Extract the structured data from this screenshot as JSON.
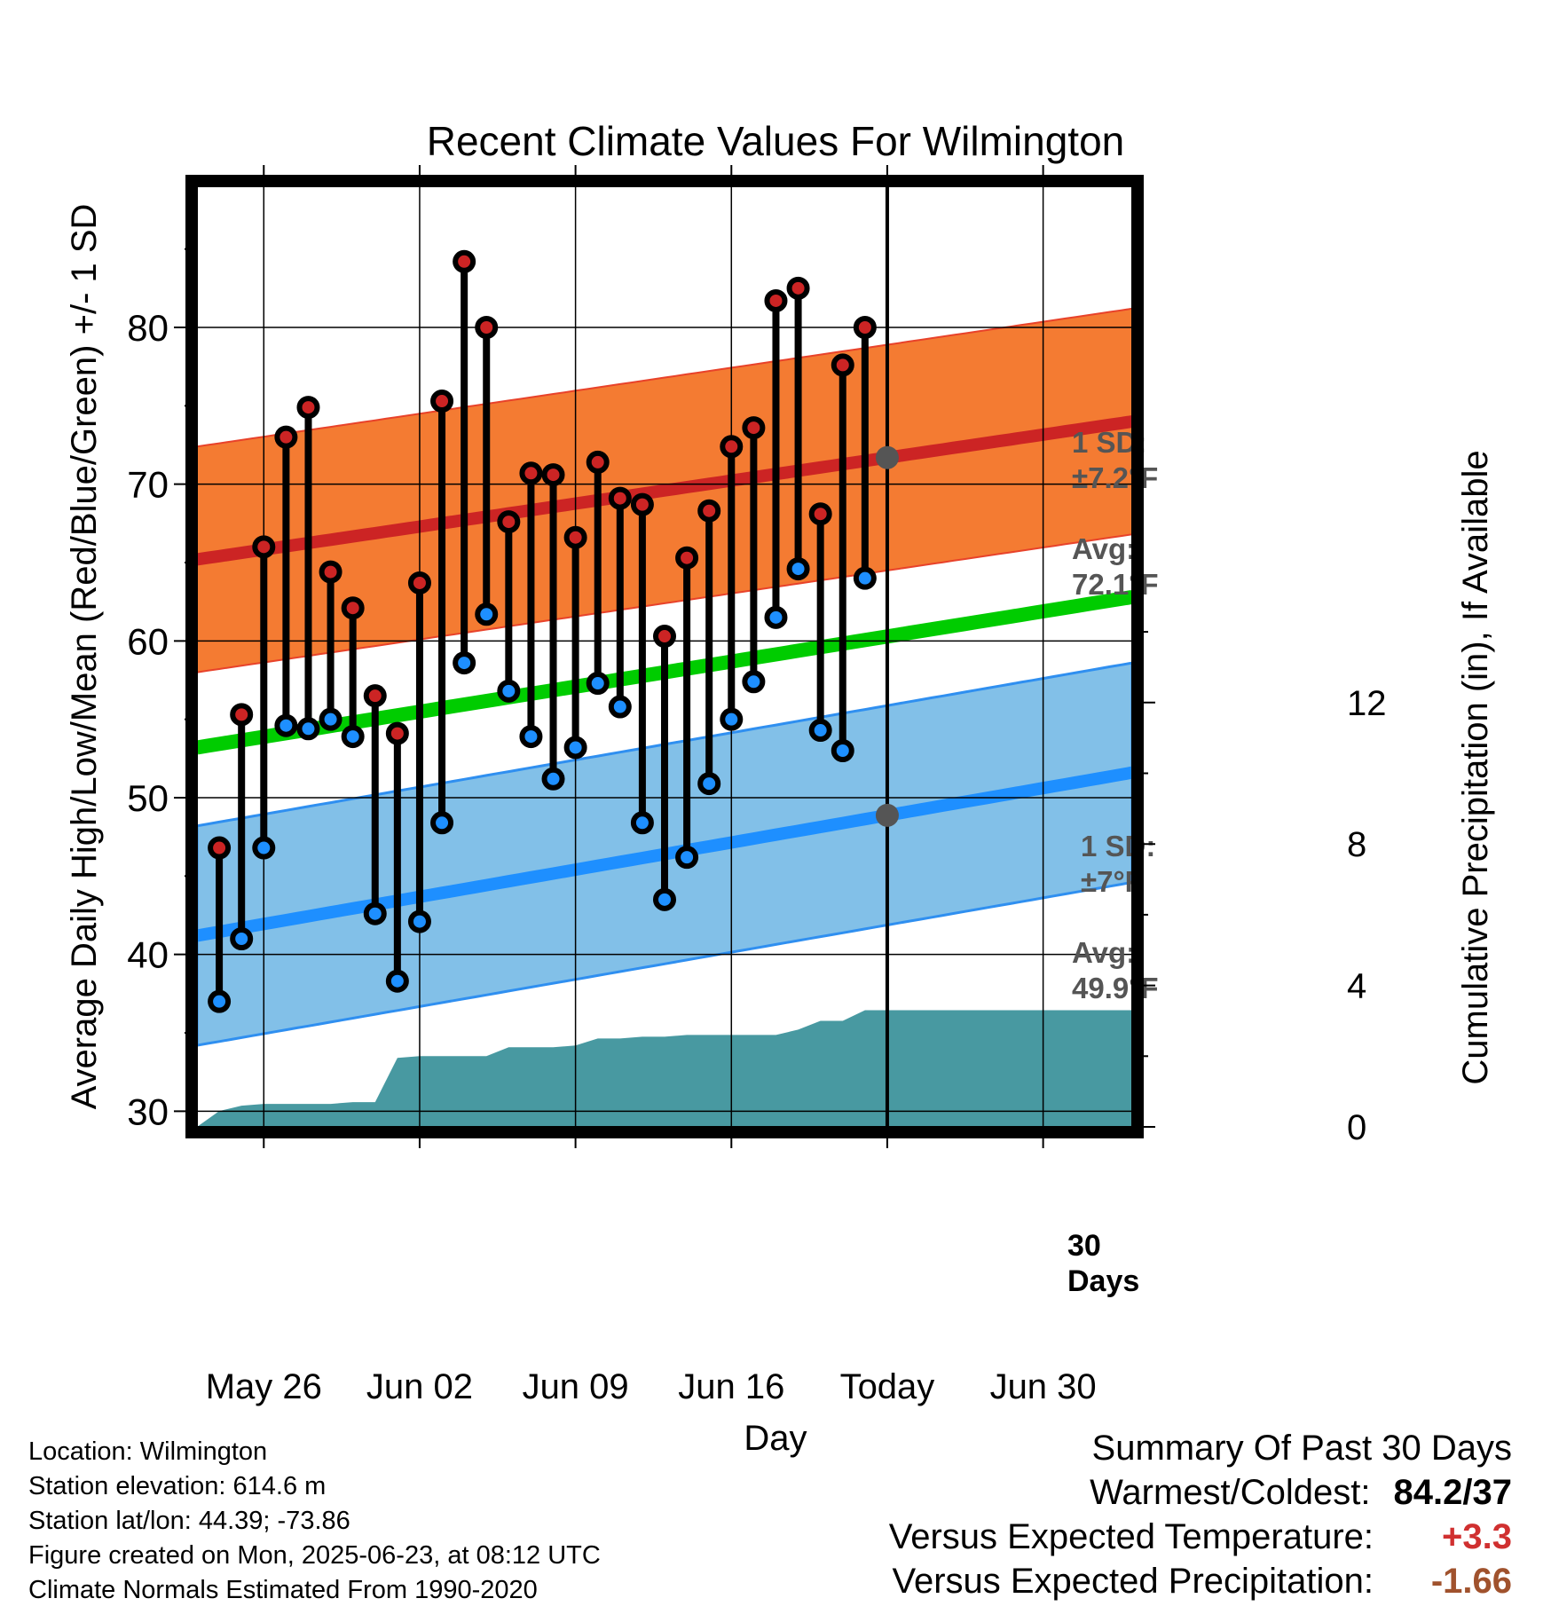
{
  "chart_data": {
    "type": "line",
    "title": "Recent Climate Values For Wilmington",
    "xlabel": "Day",
    "ylabel": "Average Daily High/Low/Mean (Red/Blue/Green) +/- 1 SD",
    "ylabel_right": "Cumulative Precipitation (in), If Available",
    "x_ticks": [
      "May 26",
      "Jun 02",
      "Jun 09",
      "Jun 16",
      "Today",
      "Jun 30"
    ],
    "y_ticks": [
      30,
      40,
      50,
      60,
      70,
      80
    ],
    "y_ticks_right": [
      0,
      4,
      8,
      12
    ],
    "ylim": [
      29,
      89
    ],
    "ylim_right": [
      0,
      26.6
    ],
    "x_range_days": [
      -31,
      11
    ],
    "days": [
      -30,
      -29,
      -28,
      -27,
      -26,
      -25,
      -24,
      -23,
      -22,
      -21,
      -20,
      -19,
      -18,
      -17,
      -16,
      -15,
      -14,
      -13,
      -12,
      -11,
      -10,
      -9,
      -8,
      -7,
      -6,
      -5,
      -4,
      -3,
      -2,
      -1
    ],
    "daily_high": [
      46.8,
      55.3,
      66.0,
      73.0,
      74.9,
      64.4,
      62.1,
      56.5,
      54.1,
      63.7,
      75.3,
      84.2,
      80.0,
      67.6,
      70.7,
      70.6,
      66.6,
      71.4,
      69.1,
      68.7,
      60.3,
      65.3,
      68.3,
      72.4,
      73.6,
      81.7,
      82.5,
      68.1,
      77.6,
      80.0
    ],
    "daily_low": [
      37.0,
      41.0,
      46.8,
      54.6,
      54.4,
      55.0,
      53.9,
      42.6,
      38.3,
      42.1,
      48.4,
      58.6,
      61.7,
      56.8,
      53.9,
      51.2,
      53.2,
      57.3,
      55.8,
      48.4,
      43.5,
      46.2,
      50.9,
      55.0,
      57.4,
      61.5,
      64.6,
      54.3,
      53.0,
      64.0
    ],
    "normal_high_avg": {
      "day": [
        -31,
        11
      ],
      "values": [
        65.2,
        74.0
      ]
    },
    "normal_high_sd": 7.2,
    "normal_low_avg": {
      "day": [
        -31,
        11
      ],
      "values": [
        41.2,
        51.6
      ]
    },
    "normal_low_sd": 7.0,
    "normal_mean": {
      "day": [
        -31,
        11
      ],
      "values": [
        53.2,
        62.8
      ]
    },
    "cumulative_precip_in": {
      "day": [
        -31,
        -30,
        -29,
        -28,
        -27,
        -26,
        -25,
        -24,
        -23,
        -22,
        -21,
        -20,
        -19,
        -18,
        -17,
        -16,
        -15,
        -14,
        -13,
        -12,
        -11,
        -10,
        -9,
        -8,
        -7,
        -6,
        -5,
        -4,
        -3,
        -2,
        -1,
        0,
        11
      ],
      "values": [
        0.0,
        0.45,
        0.6,
        0.65,
        0.65,
        0.65,
        0.65,
        0.7,
        0.7,
        1.95,
        2.0,
        2.0,
        2.0,
        2.0,
        2.25,
        2.25,
        2.25,
        2.3,
        2.5,
        2.5,
        2.55,
        2.55,
        2.6,
        2.6,
        2.6,
        2.6,
        2.6,
        2.75,
        3.0,
        3.0,
        3.3,
        3.3,
        3.3
      ]
    },
    "annotations": {
      "high_sd": "1 SD:\n±7.2°F",
      "high_avg": "Avg:\n72.1°F",
      "low_sd": "1 SD:\n±7°F",
      "low_avg": "Avg:\n49.9°F",
      "window": "30\nDays"
    },
    "colors": {
      "high": "#cc2424",
      "high_band": "#f47b32",
      "low": "#1e8fff",
      "low_band": "#82c0e8",
      "mean": "#00cc00",
      "precip": "#4899a1",
      "label": "#555555"
    }
  },
  "footer": {
    "location": "Location: Wilmington",
    "elevation": "Station elevation: 614.6 m",
    "latlon": "Station lat/lon: 44.39; -73.86",
    "created": "Figure created on Mon, 2025-06-23, at 08:12 UTC",
    "normals": "Climate Normals Estimated From 1990-2020"
  },
  "summary": {
    "title": "Summary Of Past 30 Days",
    "warmest_label": "Warmest/Coldest:",
    "warmest_value": "84.2/37",
    "temp_label": "Versus Expected Temperature:",
    "temp_value": "+3.3",
    "temp_color": "#d03030",
    "precip_label": "Versus Expected Precipitation:",
    "precip_value": "-1.66",
    "precip_color": "#a0522d"
  }
}
